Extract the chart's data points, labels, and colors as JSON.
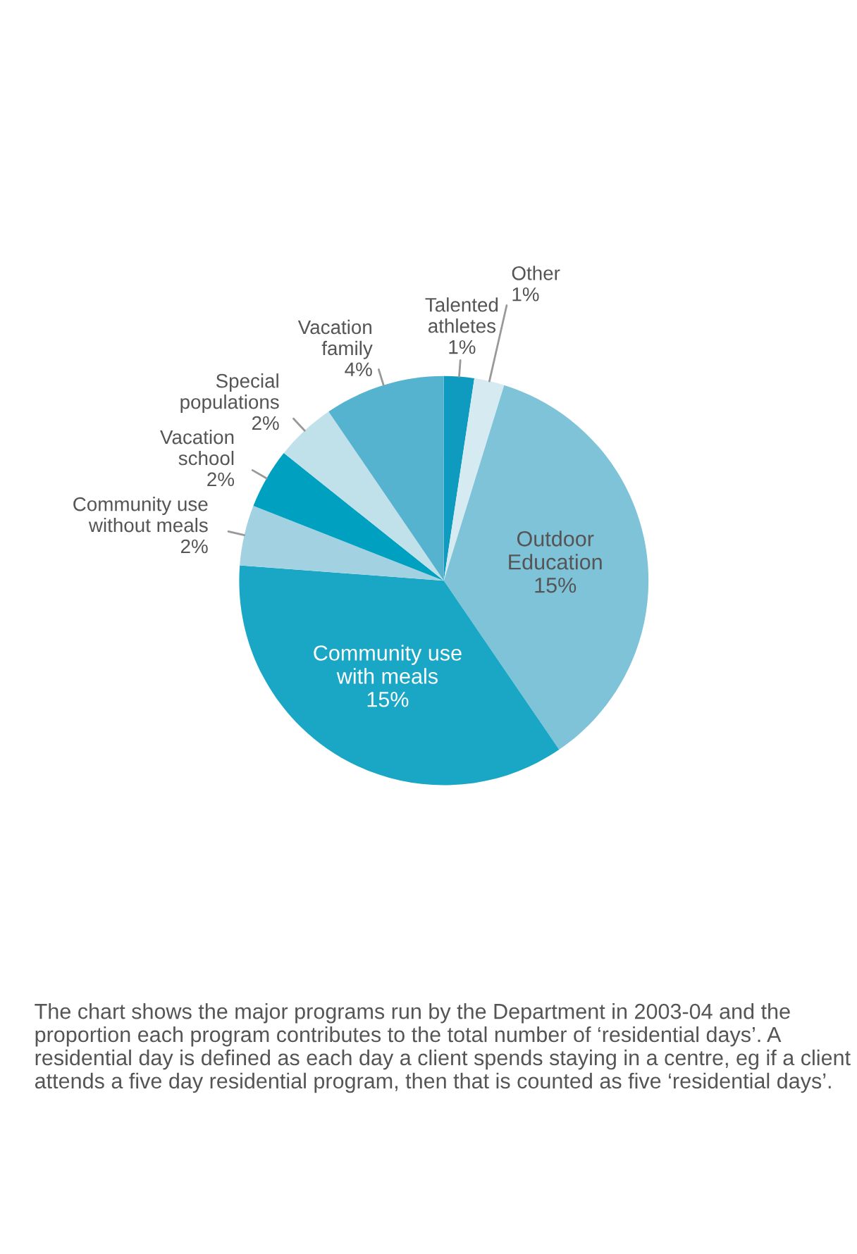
{
  "chart_data": {
    "type": "pie",
    "categories": [
      "Talented athletes",
      "Other",
      "Outdoor Education",
      "Community use with meals",
      "Community use without meals",
      "Vacation school",
      "Special populations",
      "Vacation family"
    ],
    "values": [
      1,
      1,
      15,
      15,
      2,
      2,
      2,
      4
    ],
    "value_labels": [
      "1%",
      "1%",
      "15%",
      "15%",
      "2%",
      "2%",
      "2%",
      "4%"
    ],
    "colors": [
      "#0e9bbf",
      "#d6eaf2",
      "#7fc3d9",
      "#1aa7c6",
      "#a2d2e2",
      "#00a0c0",
      "#c0e0ea",
      "#55b3d0"
    ],
    "annotations": [
      "The chart shows the major programs run by the Department in 2003-04 and the proportion each program contributes to the total number of ‘residential days’. A residential day is defined as each day a client spends staying in a centre, eg if a client attends a five day residential program, then that is counted as five ‘residential days’."
    ]
  }
}
